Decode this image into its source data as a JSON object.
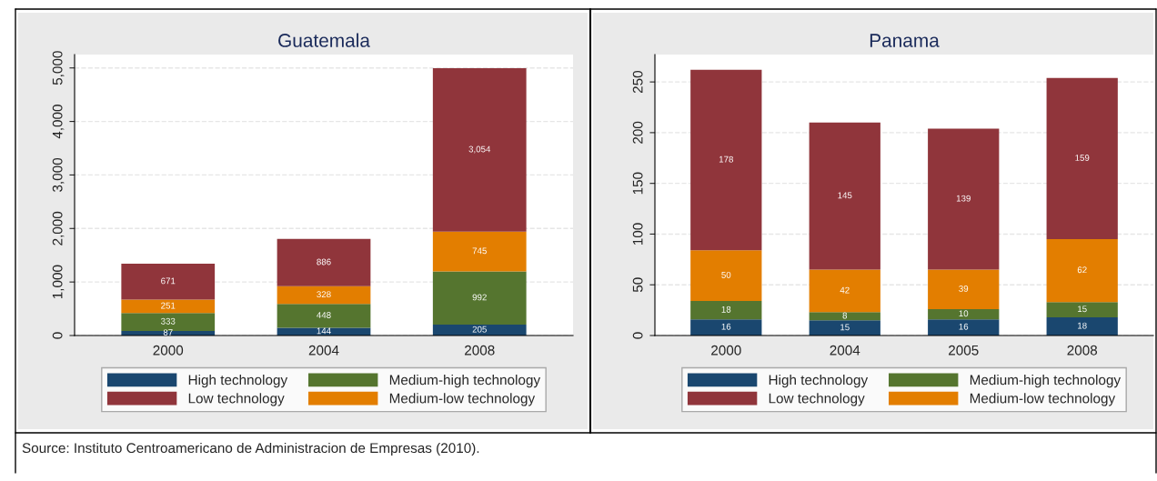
{
  "chart_data": [
    {
      "type": "bar",
      "title": "Guatemala",
      "stacked": true,
      "categories": [
        "2000",
        "2004",
        "2008"
      ],
      "series": [
        {
          "name": "High technology",
          "color": "#1a476f",
          "values": [
            87,
            144,
            205
          ],
          "value_labels": [
            "87",
            "144",
            "205"
          ]
        },
        {
          "name": "Medium-high technology",
          "color": "#55752f",
          "values": [
            333,
            448,
            992
          ],
          "value_labels": [
            "333",
            "448",
            "992"
          ]
        },
        {
          "name": "Medium-low technology",
          "color": "#e37e00",
          "values": [
            251,
            328,
            745
          ],
          "value_labels": [
            "251",
            "328",
            "745"
          ]
        },
        {
          "name": "Low technology",
          "color": "#90353b",
          "values": [
            671,
            886,
            3054
          ],
          "value_labels": [
            "671",
            "886",
            "3,054"
          ]
        }
      ],
      "ylim": [
        0,
        5250
      ],
      "yticks": [
        0,
        {
          "value": 1000,
          "label": "1,000"
        },
        {
          "value": 2000,
          "label": "2,000"
        },
        {
          "value": 3000,
          "label": "3,000"
        },
        {
          "value": 4000,
          "label": "4,000"
        },
        {
          "value": 5000,
          "label": "5,000"
        }
      ],
      "grid": "y",
      "legend": "bottom",
      "annotations": [
        "Source: Instituto Centroamericano de Administracion de Empresas (2010)."
      ]
    },
    {
      "type": "bar",
      "title": "Panama",
      "stacked": true,
      "categories": [
        "2000",
        "2004",
        "2005",
        "2008"
      ],
      "series": [
        {
          "name": "High technology",
          "color": "#1a476f",
          "values": [
            16,
            15,
            16,
            18
          ]
        },
        {
          "name": "Medium-high technology",
          "color": "#55752f",
          "values": [
            18,
            8,
            10,
            15
          ]
        },
        {
          "name": "Medium-low technology",
          "color": "#e37e00",
          "values": [
            50,
            42,
            39,
            62
          ]
        },
        {
          "name": "Low technology",
          "color": "#90353b",
          "values": [
            178,
            145,
            139,
            159
          ]
        }
      ],
      "ylim": [
        0,
        277
      ],
      "yticks": [
        0,
        50,
        100,
        150,
        200,
        250
      ],
      "grid": "y",
      "legend": "bottom",
      "data_labels": true
    }
  ]
}
